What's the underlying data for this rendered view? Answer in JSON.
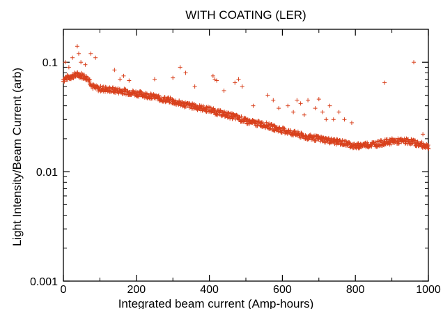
{
  "chart_data": {
    "type": "scatter",
    "title": "WITH COATING (LER)",
    "xlabel": "Integrated beam current (Amp-hours)",
    "ylabel": "Light Intensity/Beam Current (arb)",
    "xlim": [
      0,
      1000
    ],
    "ylim": [
      0.001,
      0.2
    ],
    "yscale": "log",
    "grid": false,
    "x_ticks": [
      0,
      200,
      400,
      600,
      800,
      1000
    ],
    "x_tick_labels": [
      "0",
      "200",
      "400",
      "600",
      "800",
      "1000"
    ],
    "y_ticks": [
      0.001,
      0.01,
      0.1
    ],
    "y_tick_labels": [
      "0.001",
      "0.01",
      "0.1"
    ],
    "marker": "+",
    "marker_color": "#d8401c",
    "series": [
      {
        "trend": {
          "x": [
            0,
            10,
            20,
            30,
            40,
            50,
            60,
            70,
            80,
            90,
            110,
            130,
            150,
            170,
            200,
            230,
            260,
            290,
            320,
            350,
            380,
            400,
            420,
            450,
            480,
            500,
            520,
            550,
            580,
            600,
            620,
            640,
            660,
            700,
            740,
            780,
            800,
            820,
            860,
            900,
            950,
            970,
            1000
          ],
          "y": [
            0.07,
            0.072,
            0.074,
            0.076,
            0.077,
            0.076,
            0.073,
            0.07,
            0.06,
            0.058,
            0.057,
            0.056,
            0.055,
            0.054,
            0.052,
            0.05,
            0.047,
            0.045,
            0.042,
            0.04,
            0.038,
            0.037,
            0.035,
            0.033,
            0.031,
            0.029,
            0.028,
            0.027,
            0.025,
            0.024,
            0.023,
            0.022,
            0.021,
            0.02,
            0.019,
            0.018,
            0.017,
            0.0175,
            0.018,
            0.019,
            0.019,
            0.018,
            0.017
          ]
        },
        "outliers": {
          "x": [
            5,
            15,
            25,
            38,
            42,
            48,
            60,
            75,
            88,
            140,
            155,
            165,
            180,
            250,
            300,
            320,
            335,
            360,
            410,
            415,
            420,
            440,
            470,
            480,
            490,
            520,
            560,
            575,
            590,
            615,
            630,
            640,
            650,
            660,
            670,
            690,
            700,
            710,
            720,
            730,
            740,
            755,
            770,
            790,
            880,
            960,
            985
          ],
          "y": [
            0.1,
            0.09,
            0.11,
            0.14,
            0.12,
            0.1,
            0.095,
            0.12,
            0.11,
            0.085,
            0.07,
            0.075,
            0.068,
            0.07,
            0.072,
            0.09,
            0.08,
            0.06,
            0.075,
            0.07,
            0.068,
            0.055,
            0.065,
            0.07,
            0.06,
            0.04,
            0.05,
            0.045,
            0.038,
            0.04,
            0.035,
            0.045,
            0.042,
            0.033,
            0.045,
            0.038,
            0.046,
            0.035,
            0.03,
            0.04,
            0.03,
            0.035,
            0.03,
            0.028,
            0.065,
            0.1,
            0.022
          ]
        }
      }
    ]
  }
}
